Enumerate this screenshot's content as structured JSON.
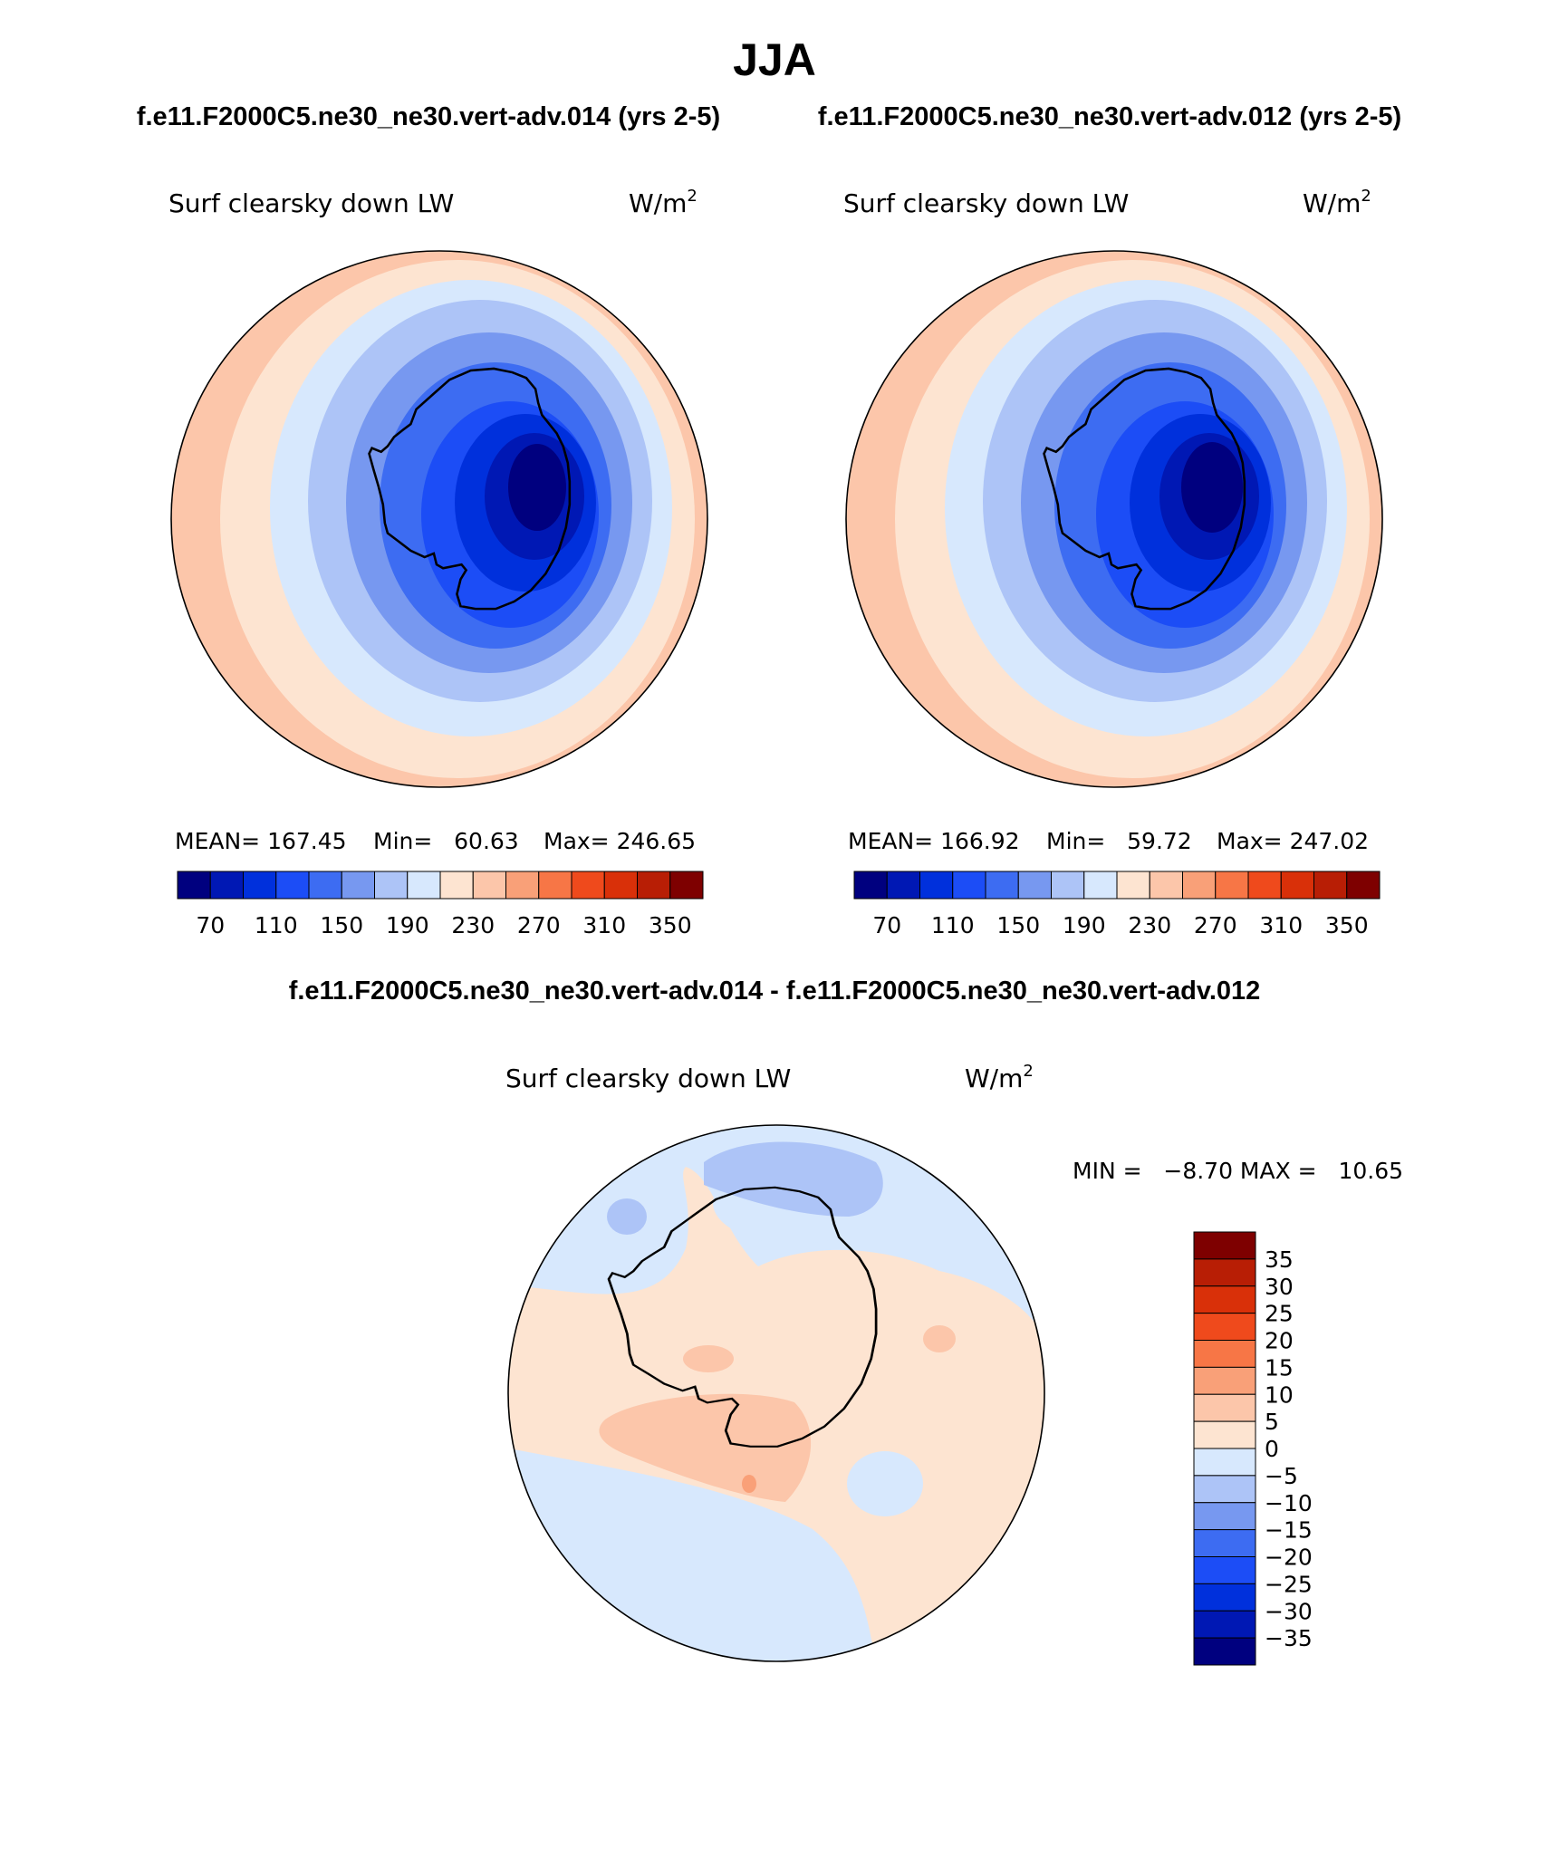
{
  "title": "JJA",
  "top_left_case": "f.e11.F2000C5.ne30_ne30.vert-adv.014 (yrs 2-5)",
  "top_right_case": "f.e11.F2000C5.ne30_ne30.vert-adv.012 (yrs 2-5)",
  "diff_title": "f.e11.F2000C5.ne30_ne30.vert-adv.014 - f.e11.F2000C5.ne30_ne30.vert-adv.012",
  "variable": "Surf clearsky down LW",
  "units": "W/m",
  "units_sup": "2",
  "panel_left": {
    "mean": "MEAN= 167.45",
    "min": "Min=   60.63",
    "max": "Max= 246.65"
  },
  "panel_right": {
    "mean": "MEAN= 166.92",
    "min": "Min=   59.72",
    "max": "Max= 247.02"
  },
  "diff_stats": "MIN =   −8.70 MAX =   10.65",
  "abs_colorbar": {
    "colors": [
      "#00007f",
      "#0018b4",
      "#0030dc",
      "#1c4df6",
      "#3d6cf2",
      "#7798f0",
      "#adc4f7",
      "#d7e8fd",
      "#fde4d1",
      "#fcc6aa",
      "#f9a078",
      "#f77646",
      "#ef4a1c",
      "#d93009",
      "#b81e05",
      "#7e0000"
    ],
    "labels": [
      "70",
      "110",
      "150",
      "190",
      "230",
      "270",
      "310",
      "350"
    ]
  },
  "diff_colorbar": {
    "colors": [
      "#7e0000",
      "#b81e05",
      "#d93009",
      "#ef4a1c",
      "#f77646",
      "#f9a078",
      "#fcc6aa",
      "#fde4d1",
      "#d7e8fd",
      "#adc4f7",
      "#7798f0",
      "#3d6cf2",
      "#1c4df6",
      "#0030dc",
      "#0018b4",
      "#00007f"
    ],
    "labels": [
      "35",
      "30",
      "25",
      "20",
      "15",
      "10",
      "5",
      "0",
      "−5",
      "−10",
      "−15",
      "−20",
      "−25",
      "−30",
      "−35"
    ]
  }
}
